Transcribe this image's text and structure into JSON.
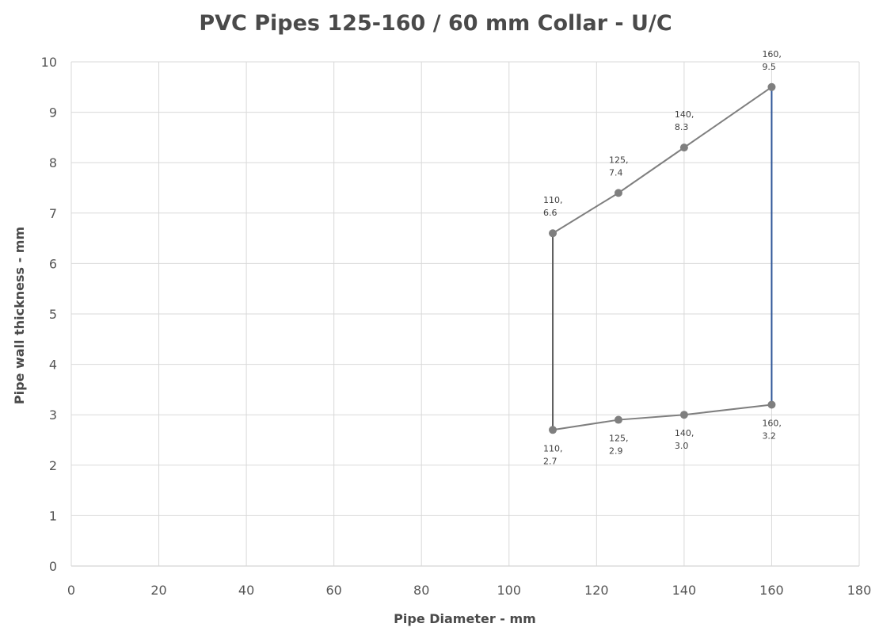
{
  "chart_data": {
    "type": "scatter",
    "title": "PVC Pipes 125-160 / 60 mm Collar - U/C",
    "xlabel": "Pipe Diameter - mm",
    "ylabel": "Pipe wall thickness - mm",
    "xlim": [
      0,
      180
    ],
    "ylim": [
      0,
      10
    ],
    "xticks": [
      "0",
      "20",
      "40",
      "60",
      "80",
      "100",
      "120",
      "140",
      "160",
      "180"
    ],
    "yticks": [
      "0",
      "1",
      "2",
      "3",
      "4",
      "5",
      "6",
      "7",
      "8",
      "9",
      "10"
    ],
    "grid": true,
    "legend": "none",
    "series": [
      {
        "color": "#7f7f7f",
        "x": [
          110,
          125,
          140,
          160
        ],
        "y": [
          6.6,
          7.4,
          8.3,
          9.5
        ],
        "labels": [
          "110,\n6.6",
          "125,\n7.4",
          "140,\n8.3",
          "160,\n9.5"
        ]
      },
      {
        "color": "#7f7f7f",
        "x": [
          110,
          125,
          140,
          160
        ],
        "y": [
          2.7,
          2.9,
          3.0,
          3.2
        ],
        "labels": [
          "110,\n2.7",
          "125,\n2.9",
          "140,\n3.0",
          "160,\n3.2"
        ]
      },
      {
        "color": "#595959",
        "x": [
          110,
          110
        ],
        "y": [
          2.7,
          6.6
        ]
      },
      {
        "color": "#2e5597",
        "x": [
          160,
          160
        ],
        "y": [
          3.2,
          9.5
        ]
      }
    ]
  }
}
